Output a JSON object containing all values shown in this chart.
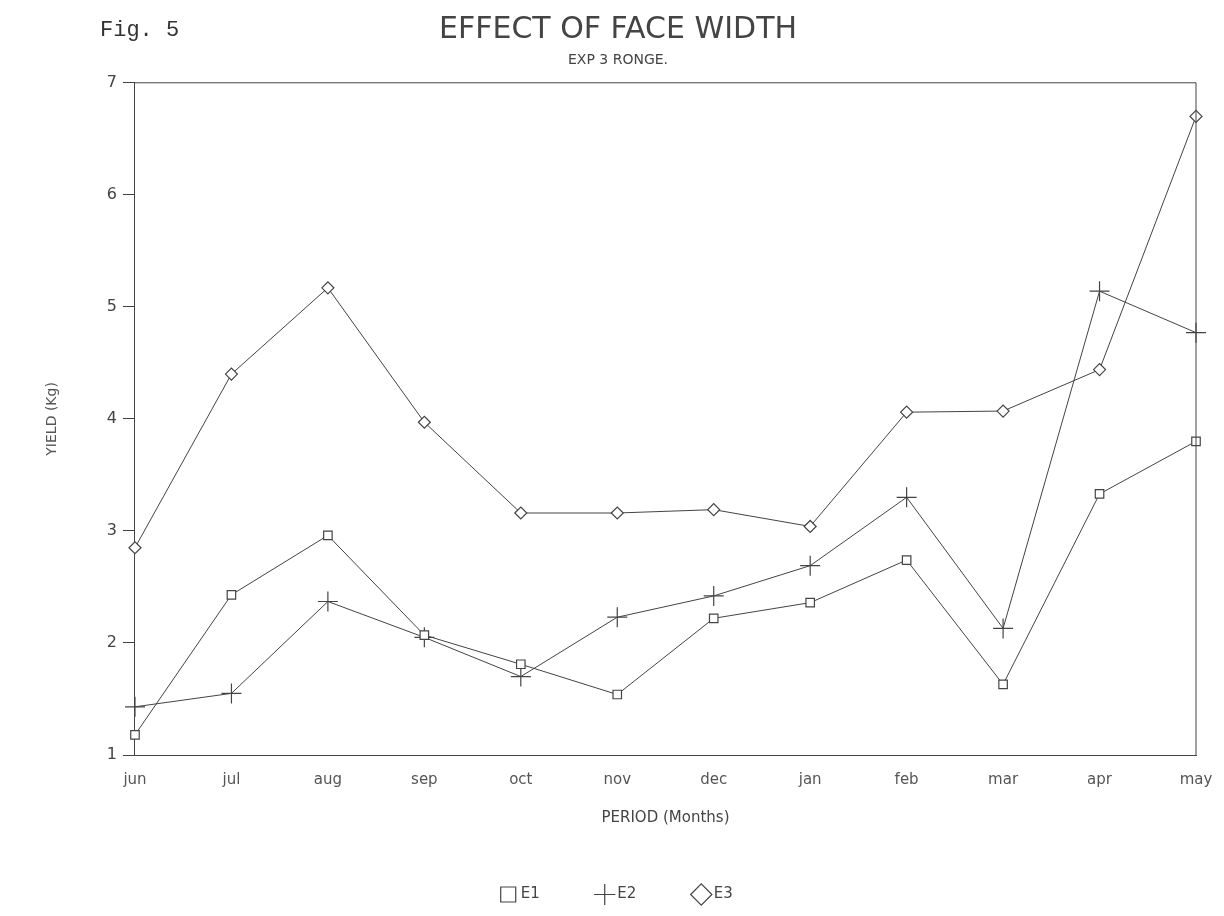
{
  "chart_data": {
    "type": "line",
    "title": "EFFECT OF FACE WIDTH",
    "subtitle": "EXP 3 RONGE.",
    "annotations": [
      "Fig. 5"
    ],
    "xlabel": "PERIOD (Months)",
    "ylabel": "YIELD (Kg)",
    "categories": [
      "jun",
      "jul",
      "aug",
      "sep",
      "oct",
      "nov",
      "dec",
      "jan",
      "feb",
      "mar",
      "apr",
      "may"
    ],
    "ylim": [
      1,
      7
    ],
    "yticks": [
      1,
      2,
      3,
      4,
      5,
      6,
      7
    ],
    "grid": false,
    "legend": "bottom",
    "line_style": "solid",
    "series": [
      {
        "name": "E1",
        "color": "#444444",
        "marker": "square",
        "values": [
          1.18,
          2.43,
          2.96,
          2.07,
          1.81,
          1.54,
          2.22,
          2.36,
          2.74,
          1.63,
          3.33,
          3.8
        ]
      },
      {
        "name": "E2",
        "color": "#444444",
        "marker": "cross",
        "values": [
          1.43,
          1.55,
          2.37,
          2.05,
          1.7,
          2.23,
          2.42,
          2.69,
          3.3,
          2.13,
          5.14,
          4.77
        ]
      },
      {
        "name": "E3",
        "color": "#444444",
        "marker": "diamond",
        "values": [
          2.85,
          4.4,
          5.17,
          3.97,
          3.16,
          3.16,
          3.19,
          3.04,
          4.06,
          4.07,
          4.44,
          6.7
        ]
      }
    ]
  }
}
